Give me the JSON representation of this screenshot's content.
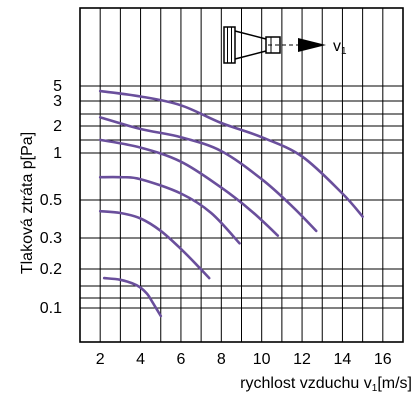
{
  "chart_data": {
    "type": "line",
    "xlabel": "rychlost vzduchu v",
    "xlabel_subscript": "1",
    "xlabel_unit": "[m/s]",
    "ylabel": "Tlaková ztráta p[Pa]",
    "x_ticks": [
      "2",
      "4",
      "6",
      "8",
      "10",
      "12",
      "14",
      "16"
    ],
    "y_ticks": [
      "5",
      "3",
      "2",
      "1",
      "0.5",
      "0.3",
      "0.2",
      "0.1"
    ],
    "xlim": [
      1,
      17
    ],
    "y_scale": "nonuniform",
    "grid": true,
    "icon_label": "v",
    "icon_label_subscript": "1",
    "line_color": "#6a4f9c",
    "series": [
      {
        "x": [
          2.0,
          4.0,
          6.0,
          8.0,
          10.0,
          12.0,
          14.0,
          15.0
        ],
        "y": [
          4.2,
          3.5,
          2.8,
          2.1,
          1.5,
          0.95,
          0.55,
          0.4
        ]
      },
      {
        "x": [
          2.0,
          4.0,
          6.0,
          8.0,
          10.0,
          11.5,
          12.7
        ],
        "y": [
          2.3,
          1.85,
          1.5,
          1.05,
          0.68,
          0.46,
          0.33
        ]
      },
      {
        "x": [
          2.0,
          4.0,
          6.0,
          8.0,
          9.5,
          10.8
        ],
        "y": [
          1.4,
          1.15,
          0.88,
          0.6,
          0.43,
          0.31
        ]
      },
      {
        "x": [
          2.0,
          3.0,
          4.0,
          6.0,
          7.5,
          8.9
        ],
        "y": [
          0.7,
          0.7,
          0.68,
          0.55,
          0.42,
          0.28
        ]
      },
      {
        "x": [
          2.0,
          3.0,
          4.0,
          5.0,
          6.0,
          6.8,
          7.4
        ],
        "y": [
          0.43,
          0.42,
          0.39,
          0.33,
          0.26,
          0.21,
          0.17
        ]
      },
      {
        "x": [
          2.2,
          3.0,
          3.8,
          4.3,
          4.6,
          5.0
        ],
        "y": [
          0.17,
          0.165,
          0.15,
          0.13,
          0.11,
          0.085
        ]
      }
    ]
  }
}
